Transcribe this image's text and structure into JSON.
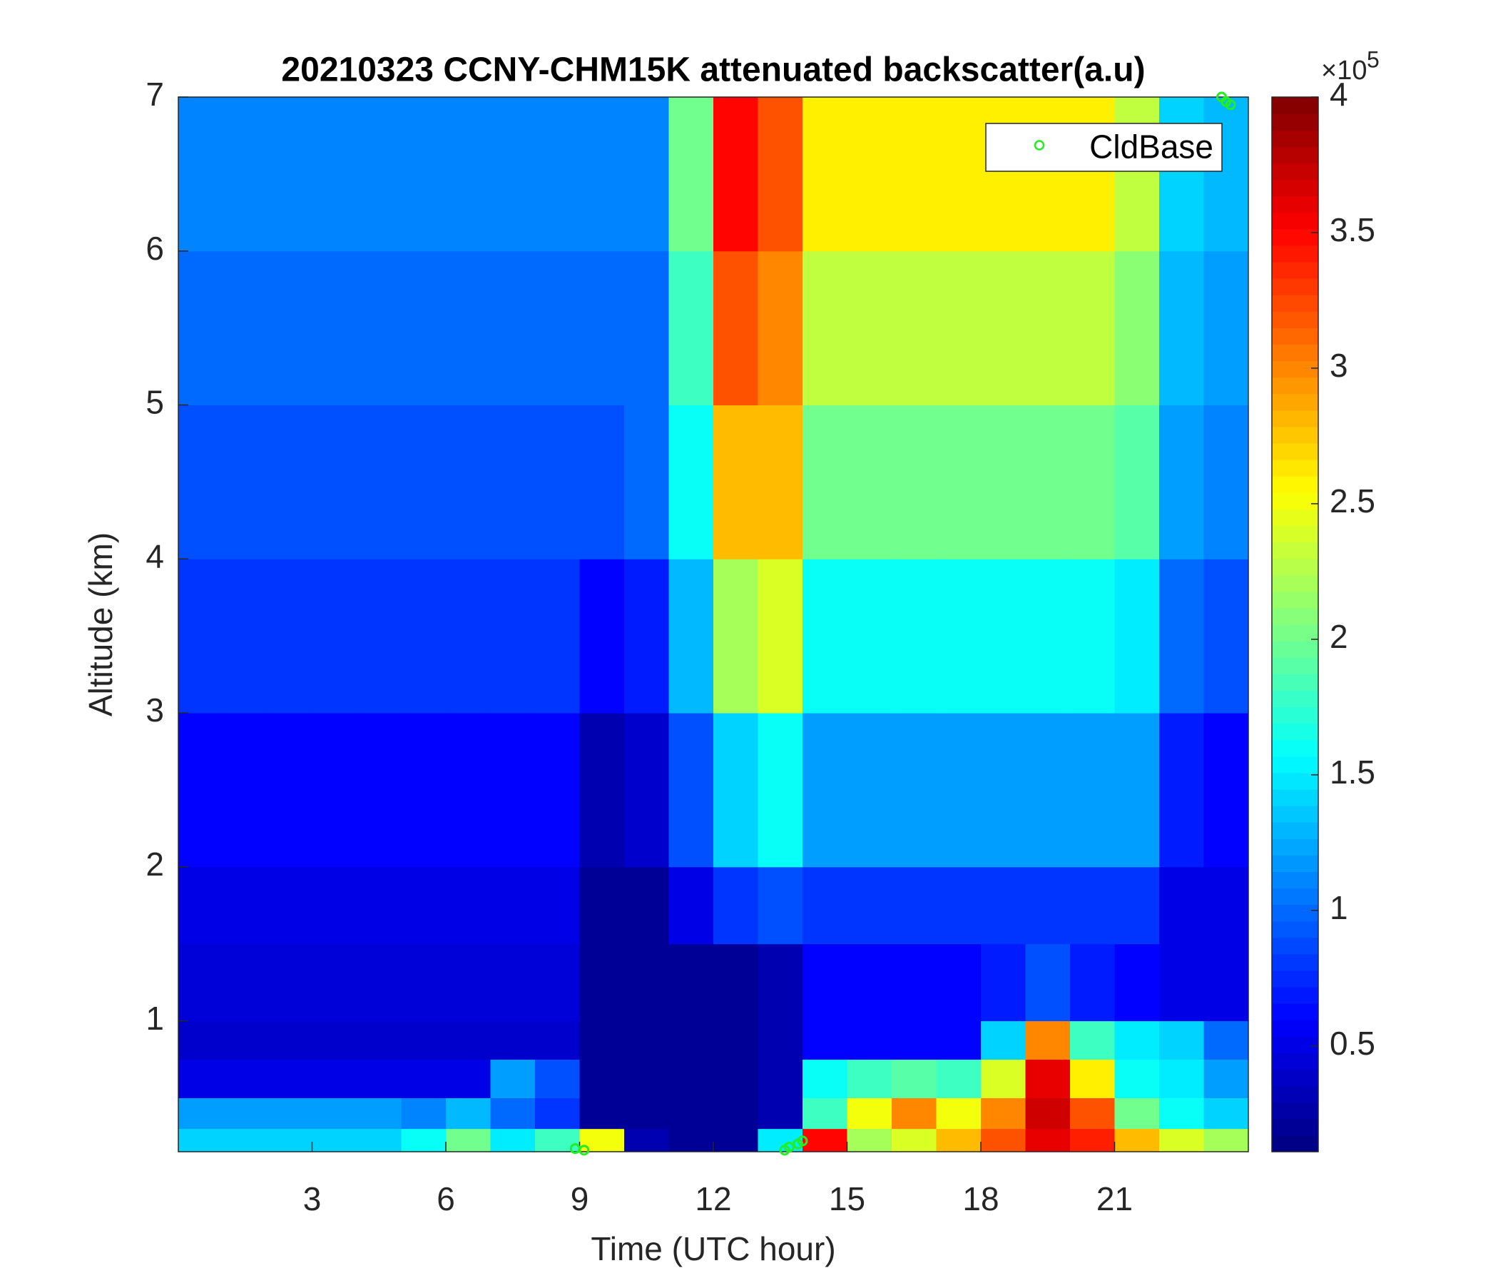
{
  "chart_data": {
    "type": "heatmap",
    "title": "20210323 CCNY-CHM15K attenuated backscatter(a.u)",
    "xlabel": "Time (UTC hour)",
    "ylabel": "Altitude (km)",
    "xlim": [
      0,
      24
    ],
    "ylim": [
      0.15,
      7
    ],
    "xticks": [
      3,
      6,
      9,
      12,
      15,
      18,
      21
    ],
    "yticks": [
      1,
      2,
      3,
      4,
      5,
      6,
      7
    ],
    "colormap": "jet",
    "clim": [
      0.11,
      4
    ],
    "cticks": [
      0.5,
      1,
      1.5,
      2,
      2.5,
      3,
      3.5,
      4
    ],
    "colorbar_multiplier": "×10",
    "colorbar_exponent": "5",
    "x_edges": [
      0,
      1,
      2,
      3,
      4,
      5,
      6,
      7,
      8,
      9,
      10,
      11,
      12,
      13,
      14,
      15,
      16,
      17,
      18,
      19,
      20,
      21,
      22,
      23,
      24
    ],
    "y_edges": [
      0.15,
      0.3,
      0.5,
      0.75,
      1,
      1.5,
      2,
      3,
      4,
      5,
      6,
      7
    ],
    "z": [
      [
        1.4,
        1.4,
        1.4,
        1.4,
        1.4,
        1.6,
        2.0,
        1.5,
        1.8,
        2.5,
        0.3,
        0.2,
        0.2,
        1.5,
        3.5,
        2.2,
        2.4,
        2.8,
        3.2,
        3.6,
        3.4,
        2.8,
        2.4,
        2.2
      ],
      [
        1.2,
        1.2,
        1.2,
        1.2,
        1.2,
        1.1,
        1.3,
        1.0,
        0.8,
        0.2,
        0.2,
        0.2,
        0.2,
        0.3,
        1.8,
        2.5,
        3.0,
        2.5,
        3.0,
        3.7,
        3.2,
        2.0,
        1.6,
        1.4
      ],
      [
        0.5,
        0.5,
        0.5,
        0.5,
        0.5,
        0.5,
        0.5,
        1.2,
        0.9,
        0.2,
        0.2,
        0.2,
        0.2,
        0.3,
        1.6,
        1.8,
        1.9,
        1.8,
        2.4,
        3.6,
        2.6,
        1.6,
        1.5,
        1.2
      ],
      [
        0.4,
        0.4,
        0.4,
        0.4,
        0.4,
        0.4,
        0.4,
        0.4,
        0.4,
        0.2,
        0.2,
        0.2,
        0.2,
        0.3,
        0.6,
        0.6,
        0.6,
        0.6,
        1.4,
        3.0,
        1.8,
        1.5,
        1.4,
        1.0
      ],
      [
        0.45,
        0.45,
        0.45,
        0.45,
        0.45,
        0.45,
        0.45,
        0.45,
        0.45,
        0.2,
        0.2,
        0.2,
        0.2,
        0.3,
        0.6,
        0.6,
        0.6,
        0.6,
        0.7,
        0.9,
        0.7,
        0.6,
        0.5,
        0.5
      ],
      [
        0.5,
        0.5,
        0.5,
        0.5,
        0.5,
        0.5,
        0.5,
        0.5,
        0.5,
        0.2,
        0.2,
        0.5,
        0.8,
        0.9,
        0.8,
        0.8,
        0.8,
        0.8,
        0.8,
        0.8,
        0.8,
        0.8,
        0.5,
        0.5
      ],
      [
        0.6,
        0.6,
        0.6,
        0.6,
        0.6,
        0.6,
        0.6,
        0.6,
        0.6,
        0.3,
        0.4,
        0.9,
        1.4,
        1.6,
        1.2,
        1.2,
        1.2,
        1.2,
        1.2,
        1.2,
        1.2,
        1.2,
        0.7,
        0.6
      ],
      [
        0.8,
        0.8,
        0.8,
        0.8,
        0.8,
        0.8,
        0.8,
        0.8,
        0.8,
        0.6,
        0.7,
        1.3,
        2.2,
        2.4,
        1.6,
        1.6,
        1.6,
        1.6,
        1.6,
        1.6,
        1.6,
        1.5,
        1.0,
        0.9
      ],
      [
        0.9,
        0.9,
        0.9,
        0.9,
        0.9,
        0.9,
        0.9,
        0.9,
        0.9,
        0.9,
        1.0,
        1.6,
        2.8,
        2.8,
        2.0,
        2.0,
        2.0,
        2.0,
        2.0,
        2.0,
        2.0,
        1.9,
        1.2,
        1.1
      ],
      [
        1.0,
        1.0,
        1.0,
        1.0,
        1.0,
        1.0,
        1.0,
        1.0,
        1.0,
        1.0,
        1.0,
        1.8,
        3.2,
        3.0,
        2.3,
        2.3,
        2.3,
        2.3,
        2.3,
        2.3,
        2.3,
        2.1,
        1.3,
        1.2
      ],
      [
        1.1,
        1.1,
        1.1,
        1.1,
        1.1,
        1.1,
        1.1,
        1.1,
        1.1,
        1.1,
        1.1,
        2.0,
        3.5,
        3.2,
        2.6,
        2.6,
        2.6,
        2.6,
        2.6,
        2.6,
        2.6,
        2.3,
        1.4,
        1.3
      ]
    ],
    "series": [
      {
        "name": "CldBase",
        "color": "#22ee22",
        "x": [
          8.9,
          9.1,
          13.6,
          13.7,
          13.9,
          14.0,
          23.4,
          23.5,
          23.6
        ],
        "values": [
          0.17,
          0.16,
          0.16,
          0.18,
          0.2,
          0.22,
          7.0,
          6.97,
          6.95
        ]
      }
    ],
    "legend": "upper-right"
  }
}
